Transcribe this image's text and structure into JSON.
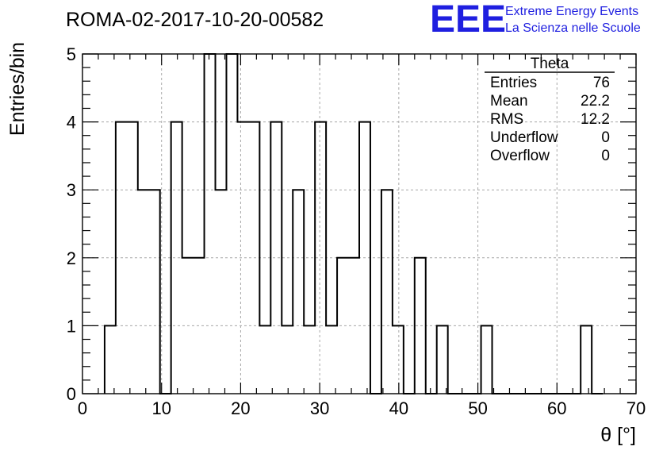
{
  "header": {
    "run_title": "ROMA-02-2017-10-20-00582",
    "logo": "EEE",
    "logo_line1": "Extreme Energy Events",
    "logo_line2": "La Scienza nelle Scuole"
  },
  "stats_box": {
    "name": "Theta",
    "rows": [
      {
        "label": "Entries",
        "value": "76"
      },
      {
        "label": "Mean",
        "value": "22.2"
      },
      {
        "label": "RMS",
        "value": "12.2"
      },
      {
        "label": "Underflow",
        "value": "0"
      },
      {
        "label": "Overflow",
        "value": "0"
      }
    ]
  },
  "chart_data": {
    "type": "bar",
    "style": "step-histogram",
    "xlabel": "θ [°]",
    "ylabel": "Entries/bin",
    "xlim": [
      0,
      70
    ],
    "ylim": [
      0,
      5
    ],
    "grid": true,
    "bin_width": 1.4,
    "x_ticks": [
      0,
      10,
      20,
      30,
      40,
      50,
      60,
      70
    ],
    "y_ticks": [
      0,
      1,
      2,
      3,
      4,
      5
    ],
    "bin_low_edges": [
      2.8,
      4.2,
      5.6,
      7.0,
      8.4,
      9.8,
      11.2,
      12.6,
      14.0,
      15.4,
      16.8,
      18.2,
      19.6,
      21.0,
      22.4,
      23.8,
      25.2,
      26.6,
      28.0,
      29.4,
      30.8,
      32.2,
      33.6,
      35.0,
      36.4,
      37.8,
      39.2,
      40.6,
      42.0,
      43.4,
      44.8,
      46.2,
      47.6,
      49.0,
      50.4,
      51.8,
      53.2,
      54.6,
      56.0,
      57.4,
      58.8,
      60.2,
      61.6,
      63.0,
      64.4
    ],
    "values": [
      1,
      4,
      4,
      3,
      3,
      0,
      4,
      2,
      2,
      5,
      3,
      5,
      4,
      4,
      1,
      4,
      1,
      3,
      1,
      4,
      1,
      2,
      2,
      4,
      0,
      3,
      1,
      0,
      2,
      0,
      1,
      0,
      0,
      0,
      1,
      0,
      0,
      0,
      0,
      0,
      0,
      0,
      0,
      1,
      0
    ]
  }
}
